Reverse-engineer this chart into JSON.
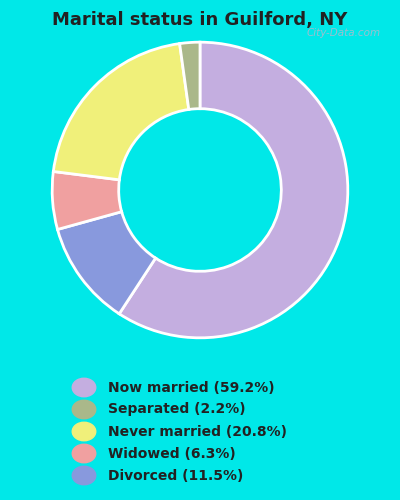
{
  "title": "Marital status in Guilford, NY",
  "slices": [
    59.2,
    2.2,
    20.8,
    6.3,
    11.5
  ],
  "labels": [
    "Now married (59.2%)",
    "Separated (2.2%)",
    "Never married (20.8%)",
    "Widowed (6.3%)",
    "Divorced (11.5%)"
  ],
  "colors": [
    "#c4aee0",
    "#aab88a",
    "#f0f07a",
    "#f0a0a0",
    "#8899dd"
  ],
  "bg_outer": "#00e8e8",
  "bg_inner_top": "#e0f0e8",
  "bg_inner_bottom": "#c8e8d8",
  "title_color": "#222222",
  "title_fontsize": 13,
  "legend_fontsize": 10,
  "watermark": "City-Data.com"
}
